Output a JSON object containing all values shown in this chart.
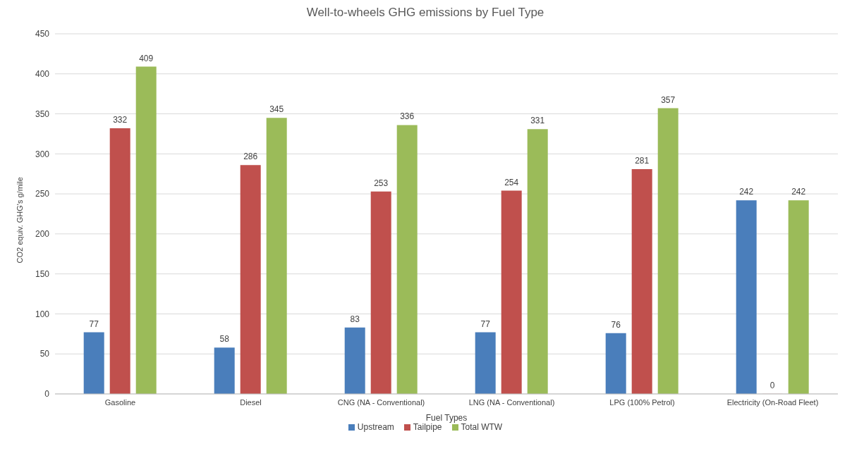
{
  "chart_data": {
    "type": "bar",
    "title": "Well-to-wheels GHG emissions by Fuel Type",
    "xlabel": "Fuel Types",
    "ylabel": "CO2 equiv. GHG's g/mile",
    "categories": [
      "Gasoline",
      "Diesel",
      "CNG (NA - Conventional)",
      "LNG (NA - Conventional)",
      "LPG (100% Petrol)",
      "Electricity (On-Road Fleet)"
    ],
    "series": [
      {
        "name": "Upstream",
        "color": "#4a7ebb",
        "values": [
          77,
          58,
          83,
          77,
          76,
          242
        ]
      },
      {
        "name": "Tailpipe",
        "color": "#c0504d",
        "values": [
          332,
          286,
          253,
          254,
          281,
          0
        ]
      },
      {
        "name": "Total WTW",
        "color": "#9bbb59",
        "values": [
          409,
          345,
          336,
          331,
          357,
          242
        ]
      }
    ],
    "ylim": [
      0,
      450
    ],
    "yticks": [
      0,
      50,
      100,
      150,
      200,
      250,
      300,
      350,
      400,
      450
    ],
    "grid": "y",
    "legend": "bottom",
    "data_labels": true
  }
}
